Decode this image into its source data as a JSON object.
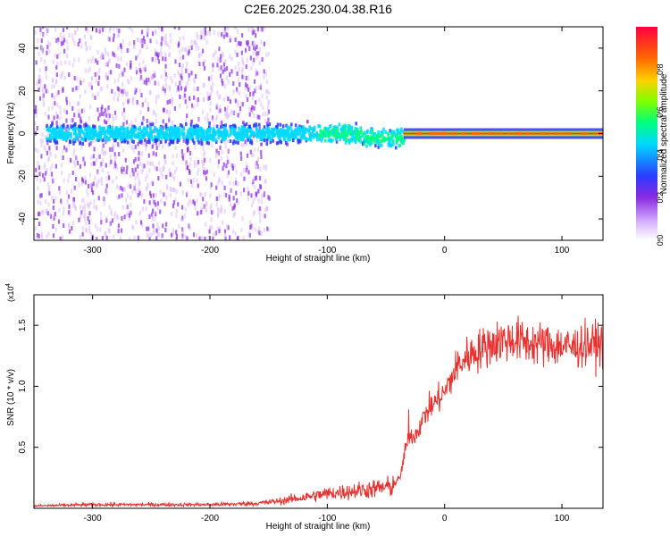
{
  "title": "C2E6.2025.230.04.38.R16",
  "chart_data": [
    {
      "type": "heatmap",
      "xlabel": "Height of straight line (km)",
      "ylabel": "Frequency (Hz)",
      "xlim": [
        -350,
        135
      ],
      "ylim": [
        -50,
        50
      ],
      "x_ticks": [
        -300,
        -200,
        -100,
        0,
        100
      ],
      "y_ticks": [
        -40,
        -20,
        0,
        20,
        40
      ],
      "grid": false,
      "colorbar": {
        "label": "Normalized spectral amplitude",
        "range": [
          0,
          1
        ],
        "ticks": [
          0.0,
          0.2,
          0.4,
          0.6,
          0.8
        ]
      },
      "features": {
        "diffuse_noise_x_range": [
          -350,
          -150
        ],
        "carrier_frequency_hz": 0,
        "band_halfwidth_hz_far": 4,
        "carrier_locked_after_km": -35
      }
    },
    {
      "type": "line",
      "xlabel": "Height of straight line (km)",
      "ylabel": "SNR (10 * v/v)",
      "y_multiplier": "(x10",
      "y_multiplier_exp": "4",
      "xlim": [
        -350,
        135
      ],
      "ylim": [
        0,
        1.75
      ],
      "x_ticks": [
        -300,
        -200,
        -100,
        0,
        100
      ],
      "y_ticks": [
        0.5,
        1.0,
        1.5
      ],
      "grid": false,
      "series": [
        {
          "color": "#e8312f",
          "x": [
            -350,
            -300,
            -250,
            -200,
            -160,
            -140,
            -120,
            -100,
            -80,
            -60,
            -45,
            -38,
            -33,
            -30,
            -25,
            -20,
            -15,
            -10,
            -5,
            0,
            5,
            10,
            20,
            30,
            40,
            50,
            60,
            70,
            80,
            90,
            100,
            110,
            120,
            135
          ],
          "values": [
            0.02,
            0.03,
            0.03,
            0.03,
            0.04,
            0.06,
            0.09,
            0.12,
            0.14,
            0.16,
            0.18,
            0.25,
            0.5,
            0.6,
            0.6,
            0.7,
            0.8,
            0.85,
            0.9,
            0.95,
            1.05,
            1.15,
            1.25,
            1.3,
            1.35,
            1.38,
            1.38,
            1.36,
            1.35,
            1.34,
            1.33,
            1.32,
            1.34,
            1.35
          ]
        }
      ]
    }
  ],
  "colors": {
    "accent": "#e8312f"
  }
}
